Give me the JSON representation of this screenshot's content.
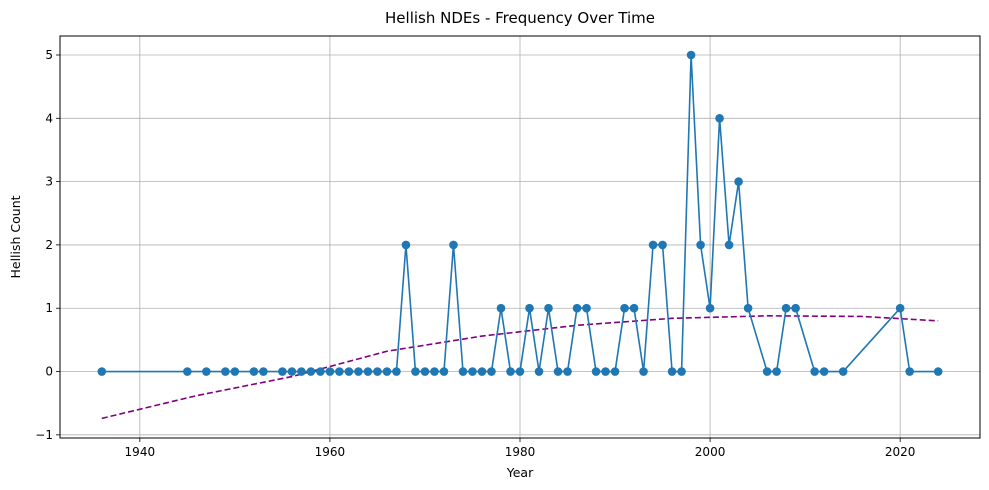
{
  "chart_data": {
    "type": "line",
    "title": "Hellish NDEs - Frequency Over Time",
    "xlabel": "Year",
    "ylabel": "Hellish Count",
    "xlim": [
      1931.6,
      2028.4
    ],
    "ylim": [
      -1.05,
      5.3
    ],
    "xticks": [
      1940,
      1960,
      1980,
      2000,
      2020
    ],
    "yticks": [
      -1,
      0,
      1,
      2,
      3,
      4,
      5
    ],
    "grid": true,
    "colors": {
      "series": "#1f77b4",
      "trend": "#800080",
      "grid": "#b0b0b0"
    },
    "series": [
      {
        "style": "solid-with-markers",
        "x": [
          1936,
          1945,
          1947,
          1949,
          1950,
          1952,
          1953,
          1955,
          1956,
          1957,
          1958,
          1959,
          1960,
          1961,
          1962,
          1963,
          1964,
          1965,
          1966,
          1967,
          1968,
          1969,
          1970,
          1971,
          1972,
          1973,
          1974,
          1975,
          1976,
          1977,
          1978,
          1979,
          1980,
          1981,
          1982,
          1983,
          1984,
          1985,
          1986,
          1987,
          1988,
          1989,
          1990,
          1991,
          1992,
          1993,
          1994,
          1995,
          1996,
          1997,
          1998,
          1999,
          2000,
          2001,
          2002,
          2003,
          2004,
          2006,
          2007,
          2008,
          2009,
          2011,
          2012,
          2014,
          2020,
          2021,
          2024
        ],
        "y": [
          0,
          0,
          0,
          0,
          0,
          0,
          0,
          0,
          0,
          0,
          0,
          0,
          0,
          0,
          0,
          0,
          0,
          0,
          0,
          0,
          2,
          0,
          0,
          0,
          0,
          2,
          0,
          0,
          0,
          0,
          1,
          0,
          0,
          1,
          0,
          1,
          0,
          0,
          1,
          1,
          0,
          0,
          0,
          1,
          1,
          0,
          2,
          2,
          0,
          0,
          5,
          2,
          1,
          4,
          2,
          3,
          1,
          0,
          0,
          1,
          1,
          0,
          0,
          0,
          1,
          0,
          0
        ]
      },
      {
        "style": "dashed-trend",
        "x": [
          1936,
          1946,
          1956,
          1966,
          1976,
          1986,
          1996,
          2006,
          2016,
          2024
        ],
        "y": [
          -0.74,
          -0.38,
          -0.08,
          0.32,
          0.56,
          0.73,
          0.84,
          0.88,
          0.87,
          0.8
        ]
      }
    ]
  }
}
